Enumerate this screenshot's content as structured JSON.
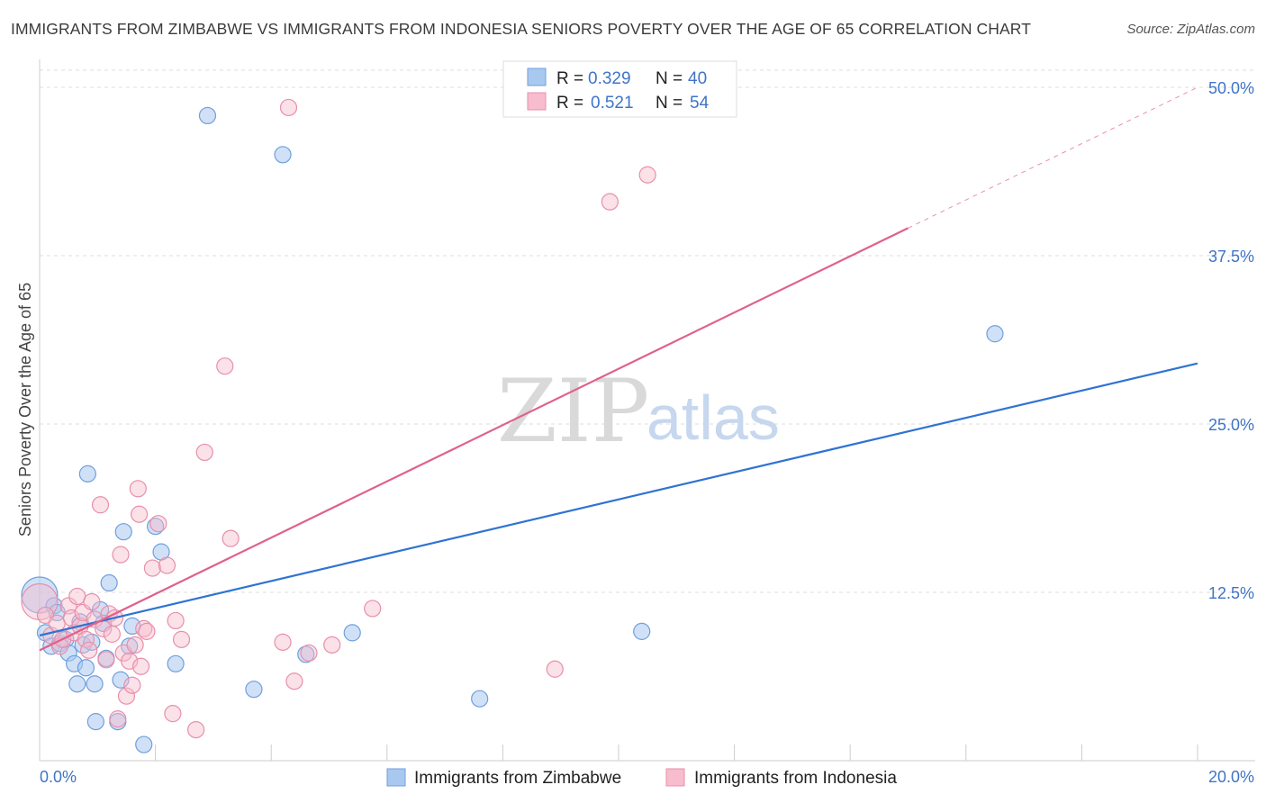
{
  "title": "IMMIGRANTS FROM ZIMBABWE VS IMMIGRANTS FROM INDONESIA SENIORS POVERTY OVER THE AGE OF 65 CORRELATION CHART",
  "source": "Source: ZipAtlas.com",
  "watermark": {
    "zip": "ZIP",
    "atlas": "atlas"
  },
  "colors": {
    "zimbabwe_fill": "#a9c8f0",
    "zimbabwe_stroke": "#6f9fdc",
    "zimbabwe_line": "#2f73d3",
    "indonesia_fill": "#f7bccd",
    "indonesia_stroke": "#e88fab",
    "indonesia_line": "#e0608c",
    "grid": "#dddddd",
    "axis_text": "#3f74c8"
  },
  "legend": {
    "r_label": "R =",
    "n_label": "N =",
    "series": [
      {
        "r": "0.329",
        "n": "40"
      },
      {
        "r": "0.521",
        "n": "54"
      }
    ]
  },
  "chart_data": {
    "type": "scatter",
    "title": "IMMIGRANTS FROM ZIMBABWE VS IMMIGRANTS FROM INDONESIA SENIORS POVERTY OVER THE AGE OF 65 CORRELATION CHART",
    "xlabel": "",
    "ylabel": "Seniors Poverty Over the Age of 65",
    "xlim": [
      0,
      20
    ],
    "ylim": [
      0,
      50
    ],
    "x_tick_labels": [
      "0.0%",
      "20.0%"
    ],
    "y_ticks": [
      12.5,
      25.0,
      37.5,
      50.0
    ],
    "y_tick_labels": [
      "12.5%",
      "25.0%",
      "37.5%",
      "50.0%"
    ],
    "grid": true,
    "legend_position": "top-center",
    "series": [
      {
        "name": "Immigrants from Zimbabwe",
        "r": 0.329,
        "n": 40,
        "trend": {
          "x": [
            0,
            20
          ],
          "y": [
            9.3,
            29.5
          ],
          "dashed_from": null
        },
        "points": [
          [
            0.0,
            12.3,
            22
          ],
          [
            0.1,
            9.5,
            10
          ],
          [
            0.2,
            8.5,
            10
          ],
          [
            0.25,
            11.5,
            10
          ],
          [
            0.3,
            11.0,
            10
          ],
          [
            0.35,
            8.7,
            10
          ],
          [
            0.45,
            9.0,
            10
          ],
          [
            0.5,
            8.0,
            10
          ],
          [
            0.6,
            7.2,
            10
          ],
          [
            0.65,
            5.7,
            10
          ],
          [
            0.7,
            10.3,
            10
          ],
          [
            0.75,
            8.6,
            10
          ],
          [
            0.8,
            6.9,
            10
          ],
          [
            0.83,
            21.3,
            10
          ],
          [
            0.9,
            8.8,
            10
          ],
          [
            0.95,
            5.7,
            10
          ],
          [
            0.97,
            2.9,
            10
          ],
          [
            1.05,
            11.2,
            10
          ],
          [
            1.1,
            10.2,
            10
          ],
          [
            1.15,
            7.6,
            10
          ],
          [
            1.2,
            13.2,
            10
          ],
          [
            1.35,
            2.9,
            10
          ],
          [
            1.4,
            6.0,
            10
          ],
          [
            1.45,
            17.0,
            10
          ],
          [
            1.55,
            8.5,
            10
          ],
          [
            1.6,
            10.0,
            10
          ],
          [
            1.8,
            1.2,
            10
          ],
          [
            2.0,
            17.4,
            10
          ],
          [
            2.1,
            15.5,
            10
          ],
          [
            2.35,
            7.2,
            10
          ],
          [
            2.9,
            47.9,
            10
          ],
          [
            3.7,
            5.3,
            10
          ],
          [
            4.2,
            45.0,
            10
          ],
          [
            4.6,
            7.9,
            10
          ],
          [
            5.4,
            9.5,
            10
          ],
          [
            7.6,
            4.6,
            10
          ],
          [
            10.4,
            9.6,
            10
          ],
          [
            16.5,
            31.7,
            10
          ]
        ]
      },
      {
        "name": "Immigrants from Indonesia",
        "r": 0.521,
        "n": 54,
        "trend": {
          "x": [
            0,
            20
          ],
          "y": [
            8.2,
            50.0
          ],
          "dashed_from": 15.0
        },
        "points": [
          [
            0.0,
            11.8,
            22
          ],
          [
            0.1,
            10.8,
            12
          ],
          [
            0.2,
            9.3,
            10
          ],
          [
            0.3,
            10.2,
            10
          ],
          [
            0.35,
            8.5,
            10
          ],
          [
            0.4,
            9.0,
            10
          ],
          [
            0.5,
            11.5,
            10
          ],
          [
            0.55,
            10.6,
            10
          ],
          [
            0.6,
            9.5,
            10
          ],
          [
            0.65,
            12.2,
            10
          ],
          [
            0.7,
            10.0,
            10
          ],
          [
            0.75,
            11.0,
            10
          ],
          [
            0.8,
            9.0,
            10
          ],
          [
            0.85,
            8.2,
            10
          ],
          [
            0.9,
            11.8,
            10
          ],
          [
            0.95,
            10.5,
            10
          ],
          [
            1.05,
            19.0,
            10
          ],
          [
            1.1,
            9.8,
            10
          ],
          [
            1.15,
            7.5,
            10
          ],
          [
            1.2,
            10.9,
            10
          ],
          [
            1.25,
            9.4,
            10
          ],
          [
            1.3,
            10.6,
            10
          ],
          [
            1.35,
            3.1,
            10
          ],
          [
            1.4,
            15.3,
            10
          ],
          [
            1.45,
            8.0,
            10
          ],
          [
            1.5,
            4.8,
            10
          ],
          [
            1.55,
            7.4,
            10
          ],
          [
            1.6,
            5.6,
            10
          ],
          [
            1.65,
            8.6,
            10
          ],
          [
            1.7,
            20.2,
            10
          ],
          [
            1.72,
            18.3,
            10
          ],
          [
            1.75,
            7.0,
            10
          ],
          [
            1.8,
            9.8,
            10
          ],
          [
            1.85,
            9.6,
            10
          ],
          [
            1.95,
            14.3,
            10
          ],
          [
            2.05,
            17.6,
            10
          ],
          [
            2.2,
            14.5,
            10
          ],
          [
            2.3,
            3.5,
            10
          ],
          [
            2.35,
            10.4,
            10
          ],
          [
            2.45,
            9.0,
            10
          ],
          [
            2.7,
            2.3,
            10
          ],
          [
            2.85,
            22.9,
            10
          ],
          [
            3.2,
            29.3,
            10
          ],
          [
            3.3,
            16.5,
            10
          ],
          [
            4.2,
            8.8,
            10
          ],
          [
            4.3,
            48.5,
            10
          ],
          [
            4.4,
            5.9,
            10
          ],
          [
            4.65,
            8.0,
            10
          ],
          [
            5.05,
            8.6,
            10
          ],
          [
            5.75,
            11.3,
            10
          ],
          [
            8.9,
            6.8,
            10
          ],
          [
            9.85,
            41.5,
            10
          ],
          [
            10.5,
            43.5,
            10
          ]
        ]
      }
    ]
  }
}
